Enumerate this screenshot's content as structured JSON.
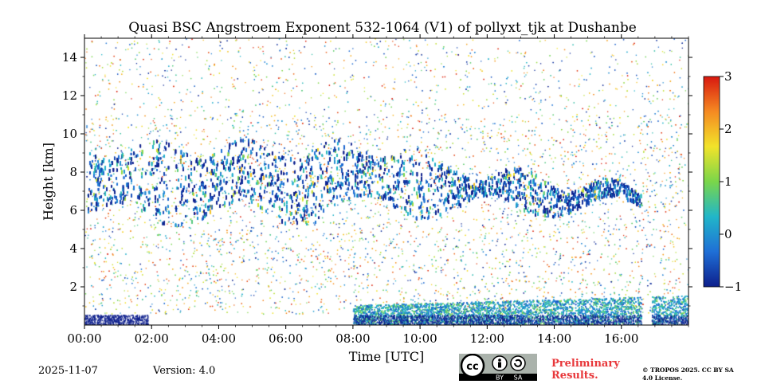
{
  "chart_data": {
    "type": "heatmap",
    "title": "Quasi BSC Angstroem Exponent 532-1064 (V1) of pollyxt_tjk at Dushanbe",
    "xlabel": "Time [UTC]",
    "ylabel": "Height [km]",
    "xlim_hours": [
      0,
      18
    ],
    "ylim_km": [
      0,
      15
    ],
    "x_ticks": [
      "00:00",
      "02:00",
      "04:00",
      "06:00",
      "08:00",
      "10:00",
      "12:00",
      "14:00",
      "16:00"
    ],
    "y_ticks": [
      "2",
      "4",
      "6",
      "8",
      "10",
      "12",
      "14"
    ],
    "colorbar": {
      "range": [
        -1,
        3
      ],
      "ticks": [
        "−1",
        "0",
        "1",
        "2",
        "3"
      ],
      "colormap": "jet",
      "colors": [
        "#0d1f8c",
        "#1f6fd6",
        "#21b6c9",
        "#7ad64a",
        "#f2e32a",
        "#f58a22",
        "#d8180f"
      ]
    },
    "cloud_layer": {
      "description": "cirrus cloud layer",
      "base_km": 5.8,
      "top_km": 9.3,
      "start_hour": 0.1,
      "end_hour": 16.6,
      "dominant_value_range": [
        -1,
        0.5
      ]
    },
    "boundary_layer": {
      "start_hour": 8.0,
      "end_hour": 18.0,
      "top_km": 1.5
    },
    "data_gap_hours": [
      [
        16.6,
        16.9
      ]
    ]
  },
  "footer": {
    "date": "2025-11-07",
    "version": "Version: 4.0",
    "preliminary": "Preliminary Results.",
    "license_badge": {
      "cc": "cc",
      "by": "BY",
      "sa": "SA"
    },
    "copyright": "© TROPOS 2025. CC BY SA 4.0 License."
  }
}
